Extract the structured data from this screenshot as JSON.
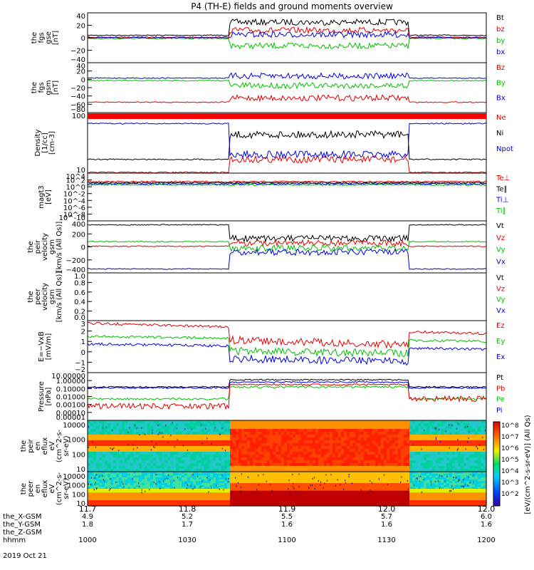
{
  "title": "P4 (TH-E) fields and ground moments overview",
  "date_label": "2019 Oct 21",
  "colors": {
    "black": "#000000",
    "red": "#e00000",
    "green": "#00c000",
    "blue": "#0000e0",
    "bar_red": "#ff0000"
  },
  "ticks_table": {
    "row_labels": [
      "the_X-GSM",
      "the_Y-GSM",
      "the_Z-GSM",
      "hhmm"
    ],
    "columns": [
      {
        "label": "11.7",
        "values": [
          "4.9",
          "1.8",
          "1000"
        ]
      },
      {
        "label": "11.8",
        "values": [
          "5.2",
          "1.7",
          "1030"
        ]
      },
      {
        "label": "11.9",
        "values": [
          "5.5",
          "1.6",
          "1100"
        ]
      },
      {
        "label": "12.0",
        "values": [
          "5.7",
          "1.6",
          "1130"
        ]
      },
      {
        "label": "12.0",
        "values": [
          "6.0",
          "1.6",
          "1200"
        ]
      }
    ]
  },
  "colorbar": {
    "ticks": [
      "10^8",
      "10^7",
      "10^6",
      "10^5",
      "10^4",
      "10^3",
      "10^2"
    ],
    "label": "[eV/(cm^2-s-sr-eV)] (All Qs)"
  },
  "chart_data": [
    {
      "type": "line",
      "ylabel": [
        "the",
        "fgs",
        "gse",
        "[nT]"
      ],
      "ylim": [
        -40,
        40
      ],
      "ticks": [
        "40",
        "20",
        "0",
        "−20",
        "−40"
      ],
      "series": [
        {
          "name": "Bt",
          "color": "black"
        },
        {
          "name": "bz",
          "color": "red"
        },
        {
          "name": "by",
          "color": "green"
        },
        {
          "name": "bx",
          "color": "blue"
        }
      ],
      "segments": {
        "quiet": [
          {
            "name": "Bt",
            "value": 4
          },
          {
            "name": "bz",
            "value": 1
          },
          {
            "name": "by",
            "value": -1
          },
          {
            "name": "bx",
            "value": 0
          }
        ],
        "active": [
          {
            "name": "Bt",
            "value": 25
          },
          {
            "name": "bz",
            "value": 12
          },
          {
            "name": "by",
            "value": -13
          },
          {
            "name": "bx",
            "value": 5
          }
        ]
      }
    },
    {
      "type": "line",
      "ylabel": [
        "the",
        "fgs",
        "gsm",
        "[nT]"
      ],
      "ylim": [
        -80,
        40
      ],
      "ticks": [
        "40",
        "20",
        "0",
        "−20",
        "−40",
        "−60",
        "−80"
      ],
      "series": [
        {
          "name": "Bz",
          "color": "red"
        },
        {
          "name": "By",
          "color": "green"
        },
        {
          "name": "Bx",
          "color": "blue"
        }
      ],
      "segments": {
        "quiet": [
          {
            "name": "Bz",
            "value": -55
          },
          {
            "name": "By",
            "value": -3
          },
          {
            "name": "Bx",
            "value": 3
          }
        ],
        "active": [
          {
            "name": "Bz",
            "value": -45
          },
          {
            "name": "By",
            "value": -15
          },
          {
            "name": "Bx",
            "value": 8
          }
        ]
      }
    },
    {
      "type": "line",
      "ylabel": [
        "Density",
        "[1/cc]",
        "[cm-3]"
      ],
      "yscale": "log",
      "ticks": [
        "100",
        "10"
      ],
      "series": [
        {
          "name": "Ne",
          "color": "red"
        },
        {
          "name": "Ni",
          "color": "black"
        },
        {
          "name": "Npot",
          "color": "blue"
        }
      ],
      "segments": {
        "quiet": [
          {
            "name": "Ne",
            "value": 2
          },
          {
            "name": "Ni",
            "value": 10
          },
          {
            "name": "Npot",
            "value": 200
          }
        ],
        "active": [
          {
            "name": "Ne",
            "value": 10
          },
          {
            "name": "Ni",
            "value": 80
          },
          {
            "name": "Npot",
            "value": 15
          }
        ]
      }
    },
    {
      "type": "line",
      "ylabel": [
        "magt3",
        "[eV]"
      ],
      "yscale": "log",
      "ticks": [
        "10^4",
        "10^2",
        "10^0",
        "10^-2",
        "10^-4",
        "10^-6",
        "10^-8",
        "10^-10"
      ],
      "series": [
        {
          "name": "Te⊥",
          "color": "red"
        },
        {
          "name": "Te∥",
          "color": "black"
        },
        {
          "name": "Ti⊥",
          "color": "blue"
        },
        {
          "name": "Ti∥",
          "color": "green"
        }
      ]
    },
    {
      "type": "line",
      "ylabel": [
        "the",
        "peir",
        "velocity",
        "gsm",
        "[km/s (All Qs)]"
      ],
      "ylim": [
        -400,
        400
      ],
      "ticks": [
        "400",
        "200",
        "0",
        "−200",
        "−400"
      ],
      "series": [
        {
          "name": "Vt",
          "color": "black"
        },
        {
          "name": "Vz",
          "color": "red"
        },
        {
          "name": "Vy",
          "color": "green"
        },
        {
          "name": "Vx",
          "color": "blue"
        }
      ],
      "segments": {
        "quiet": [
          {
            "name": "Vt",
            "value": 340
          },
          {
            "name": "Vz",
            "value": 10
          },
          {
            "name": "Vy",
            "value": 80
          },
          {
            "name": "Vx",
            "value": -340
          }
        ],
        "active": [
          {
            "name": "Vt",
            "value": 130
          },
          {
            "name": "Vz",
            "value": 60
          },
          {
            "name": "Vy",
            "value": -20
          },
          {
            "name": "Vx",
            "value": -80
          }
        ]
      }
    },
    {
      "type": "line",
      "ylabel": [
        "the",
        "peer",
        "velocity",
        "gsm",
        "[km/s (All Qs)]"
      ],
      "ylim": [
        0,
        1
      ],
      "ticks": [
        "1.0",
        "0.8",
        "0.6",
        "0.4",
        "0.2",
        "0.0"
      ],
      "series": [
        {
          "name": "Vt",
          "color": "black"
        },
        {
          "name": "Vz",
          "color": "red"
        },
        {
          "name": "Vy",
          "color": "green"
        },
        {
          "name": "Vx",
          "color": "blue"
        }
      ]
    },
    {
      "type": "line",
      "ylabel": [
        "E=−VxB",
        "[mV/m]"
      ],
      "ylim": [
        -2,
        3
      ],
      "ticks": [
        "3",
        "2",
        "1",
        "0",
        "−1",
        "−2"
      ],
      "series": [
        {
          "name": "Ez",
          "color": "red"
        },
        {
          "name": "Ey",
          "color": "green"
        },
        {
          "name": "Ex",
          "color": "blue"
        }
      ]
    },
    {
      "type": "line",
      "ylabel": [
        "Pressure",
        "[nPa]"
      ],
      "yscale": "log",
      "ticks": [
        "10.00000",
        "1.00000",
        "0.10000",
        "0.01000",
        "0.00100",
        "0.00010",
        "0.00001"
      ],
      "series": [
        {
          "name": "Pt",
          "color": "black"
        },
        {
          "name": "Pb",
          "color": "red"
        },
        {
          "name": "Pe",
          "color": "green"
        },
        {
          "name": "Pi",
          "color": "blue"
        }
      ]
    },
    {
      "type": "heatmap",
      "ylabel": [
        "the",
        "peir",
        "en",
        "eflux",
        "eV",
        "(cm^2-s-",
        "sr-eV)"
      ],
      "yscale": "log",
      "ticks": [
        "10000",
        "1000",
        "100",
        "10"
      ]
    },
    {
      "type": "heatmap",
      "ylabel": [
        "the",
        "peer",
        "en",
        "eflux",
        "eV",
        "(cm^2-s-",
        "sr-eV)"
      ],
      "yscale": "log",
      "ticks": [
        "10000",
        "1000",
        "100",
        "10"
      ]
    }
  ]
}
